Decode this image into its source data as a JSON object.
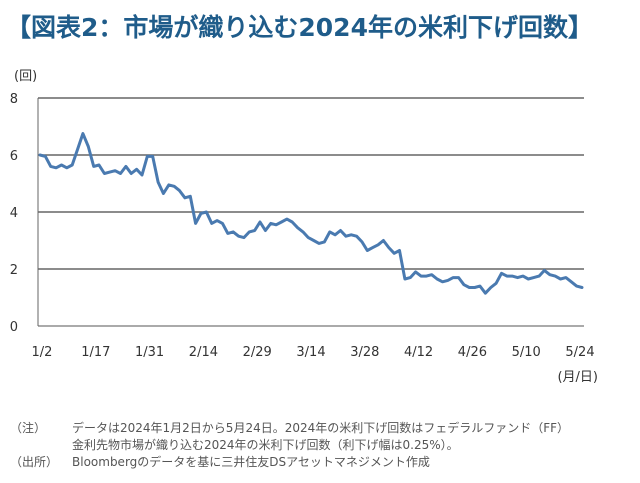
{
  "title": "【図表2：市場が織り込む2024年の米利下げ回数】",
  "notes": [
    {
      "tag": "（注）",
      "lines": [
        "データは2024年1月2日から5月24日。2024年の米利下げ回数はフェデラルファンド（FF）",
        "金利先物市場が織り込む2024年の米利下げ回数（利下げ幅は0.25%）。"
      ]
    },
    {
      "tag": "（出所）",
      "lines": [
        "Bloombergのデータを基に三井住友DSアセットマネジメント作成"
      ]
    }
  ],
  "chart_data": {
    "type": "line",
    "title": "",
    "ylabel": "(回)",
    "xlabel": "(月/日)",
    "ylim": [
      0,
      8
    ],
    "yticks": [
      0,
      2,
      4,
      6,
      8
    ],
    "grid": "horizontal",
    "x_tick_labels": [
      "1/2",
      "1/17",
      "1/31",
      "2/14",
      "2/29",
      "3/14",
      "3/28",
      "4/12",
      "4/26",
      "5/10",
      "5/24"
    ],
    "series_color": "#4a7ab0",
    "series": [
      {
        "values": [
          6.0,
          5.95,
          5.6,
          5.55,
          5.65,
          5.55,
          5.65,
          6.2,
          6.75,
          6.3,
          5.6,
          5.65,
          5.35,
          5.4,
          5.45,
          5.35,
          5.6,
          5.35,
          5.5,
          5.3,
          5.95,
          5.95,
          5.05,
          4.65,
          4.95,
          4.9,
          4.75,
          4.5,
          4.55,
          3.6,
          3.95,
          4.0,
          3.6,
          3.7,
          3.6,
          3.25,
          3.3,
          3.15,
          3.1,
          3.3,
          3.35,
          3.65,
          3.35,
          3.6,
          3.55,
          3.65,
          3.75,
          3.65,
          3.45,
          3.3,
          3.1,
          3.0,
          2.9,
          2.95,
          3.3,
          3.2,
          3.35,
          3.15,
          3.2,
          3.15,
          2.95,
          2.65,
          2.75,
          2.85,
          3.0,
          2.75,
          2.55,
          2.65,
          1.65,
          1.7,
          1.9,
          1.75,
          1.75,
          1.8,
          1.65,
          1.55,
          1.6,
          1.7,
          1.7,
          1.45,
          1.35,
          1.35,
          1.4,
          1.15,
          1.35,
          1.5,
          1.85,
          1.75,
          1.75,
          1.7,
          1.75,
          1.65,
          1.7,
          1.75,
          1.95,
          1.8,
          1.75,
          1.65,
          1.7,
          1.55,
          1.4,
          1.35
        ]
      }
    ]
  }
}
